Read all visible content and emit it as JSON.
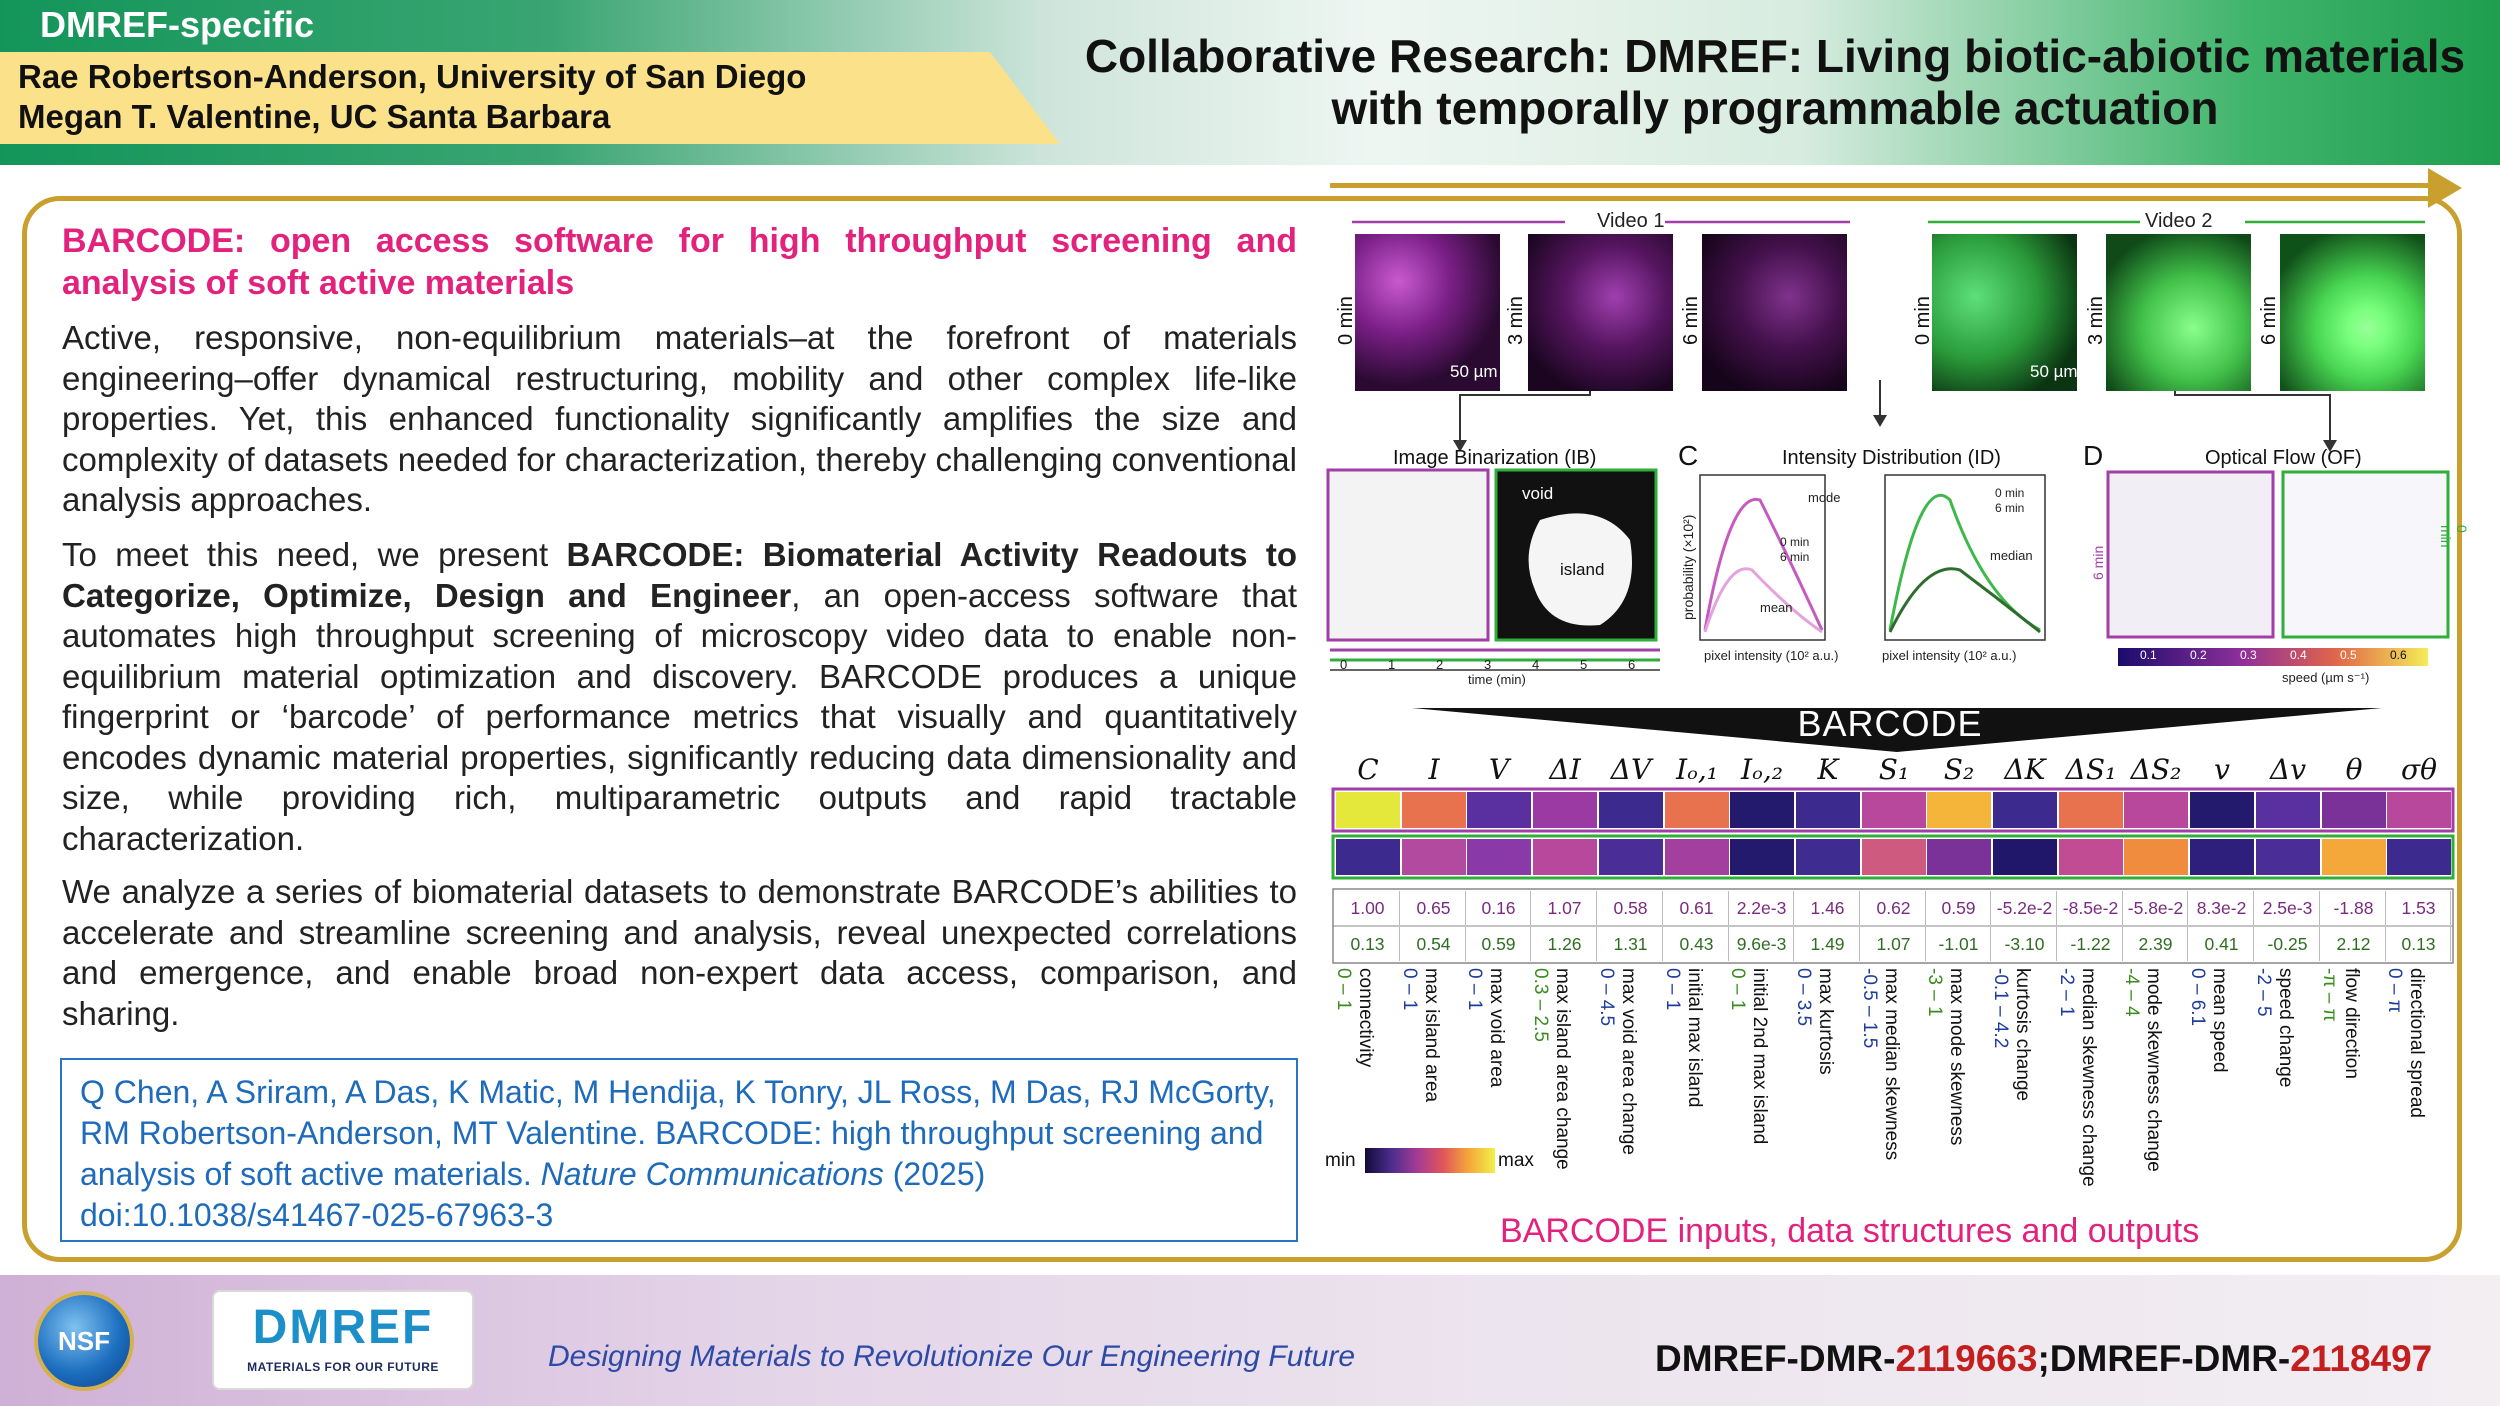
{
  "header": {
    "tag": "DMREF-specific",
    "author1": "Rae Robertson-Anderson, University of San Diego",
    "author2": "Megan T. Valentine, UC Santa Barbara",
    "title": "Collaborative Research: DMREF: Living biotic-abiotic materials with temporally programmable actuation"
  },
  "left": {
    "subtitle": "BARCODE: open access software for high throughput screening and analysis of soft active materials",
    "p1": "Active, responsive, non-equilibrium materials–at the forefront of materials engineering–offer dynamical restructuring, mobility and other complex life-like properties. Yet, this enhanced functionality significantly amplifies the size and complexity of datasets needed for characterization, thereby challenging conventional analysis approaches.",
    "p2_a": "To meet this need, we present ",
    "p2_bold": "BARCODE: Biomaterial Activity Readouts to Categorize, Optimize, Design and Engineer",
    "p2_b": ", an open-access software that automates high throughput screening of microscopy video data to enable non-equilibrium material optimization and discovery. BARCODE produces a unique fingerprint or ‘barcode’ of performance metrics that visually and quantitatively encodes dynamic material properties, significantly reducing data dimensionality and size, while providing rich, multiparametric outputs and rapid tractable characterization.",
    "p3": "We analyze a series of biomaterial datasets to demonstrate BARCODE’s abilities to accelerate and streamline screening and analysis, reveal unexpected correlations and emergence, and enable broad non-expert data access, comparison, and sharing.",
    "citation_a": "Q Chen, A Sriram, A Das, K Matic, M Hendija, K Tonry, JL Ross, M Das, RJ McGorty, RM Robertson-Anderson, MT Valentine. BARCODE: high throughput screening and analysis of soft active materials. ",
    "citation_journal": "Nature Communications",
    "citation_b": " (2025) doi:10.1038/s41467-025-67963-3"
  },
  "figure": {
    "video1": "Video 1",
    "video2": "Video 2",
    "times": [
      "0 min",
      "3 min",
      "6 min"
    ],
    "scale": "50 µm",
    "scale2": "50 µm",
    "ib_title": "Image Binarization (IB)",
    "id_title": "Intensity Distribution (ID)",
    "of_title": "Optical Flow (OF)",
    "letter_c": "C",
    "letter_d": "D",
    "void": "void",
    "island": "island",
    "time_axis": "time (min)",
    "time_ticks": [
      "0",
      "1",
      "2",
      "3",
      "4",
      "5",
      "6"
    ],
    "prob_label": "probability (×10²)",
    "pix_label": "pixel intensity (10² a.u.)",
    "mode": "mode",
    "mean": "mean",
    "median": "median",
    "leg0": "0 min",
    "leg6": "6 min",
    "of_6": "6 min",
    "of_0": "0 min",
    "speed_label": "speed (µm s⁻¹)",
    "speed_ticks": [
      "0.1",
      "0.2",
      "0.3",
      "0.4",
      "0.5",
      "0.6"
    ],
    "barcode": "BARCODE",
    "scale_min": "min",
    "scale_max": "max",
    "caption": "BARCODE inputs, data structures and outputs"
  },
  "barcode_metrics": [
    {
      "sym": "C",
      "row1": "1.00",
      "row2": "0.13",
      "label": "connectivity",
      "range": "0 – 1",
      "c1": "#e4e83a",
      "c2": "#3c2a8f"
    },
    {
      "sym": "I",
      "row1": "0.65",
      "row2": "0.54",
      "label": "max island area",
      "range": "0 – 1",
      "c1": "#e8724e",
      "c2": "#b24aa0"
    },
    {
      "sym": "V",
      "row1": "0.16",
      "row2": "0.59",
      "label": "max void area",
      "range": "0 – 1",
      "c1": "#5a2fa0",
      "c2": "#8a3aa8"
    },
    {
      "sym": "ΔI",
      "row1": "1.07",
      "row2": "1.26",
      "label": "max island area change",
      "range": "0.3 – 2.5",
      "c1": "#9c3aa4",
      "c2": "#b8489c"
    },
    {
      "sym": "ΔV",
      "row1": "0.58",
      "row2": "1.31",
      "label": "max void area change",
      "range": "0 – 4.5",
      "c1": "#3c2a8f",
      "c2": "#4a2d96"
    },
    {
      "sym": "Iₒ,₁",
      "row1": "0.61",
      "row2": "0.43",
      "label": "initial max island",
      "range": "0 – 1",
      "c1": "#e8724e",
      "c2": "#a23f9f"
    },
    {
      "sym": "Iₒ,₂",
      "row1": "2.2e-3",
      "row2": "9.6e-3",
      "label": "initial 2nd max island",
      "range": "0 – 1",
      "c1": "#231a6e",
      "c2": "#231a6e"
    },
    {
      "sym": "K",
      "row1": "1.46",
      "row2": "1.49",
      "label": "max kurtosis",
      "range": "0 – 3.5",
      "c1": "#3c2a8f",
      "c2": "#3e2c90"
    },
    {
      "sym": "S₁",
      "row1": "0.62",
      "row2": "1.07",
      "label": "max median skewness",
      "range": "-0.5 – 1.5",
      "c1": "#b8489c",
      "c2": "#ce5a80"
    },
    {
      "sym": "S₂",
      "row1": "0.59",
      "row2": "-1.01",
      "label": "max mode skewness",
      "range": "-3 – 1",
      "c1": "#f5b53a",
      "c2": "#7a3298"
    },
    {
      "sym": "ΔK",
      "row1": "-5.2e-2",
      "row2": "-3.10",
      "label": "kurtosis change",
      "range": "-0.1 – 4.2",
      "c1": "#3c2a8f",
      "c2": "#20166a"
    },
    {
      "sym": "ΔS₁",
      "row1": "-8.5e-2",
      "row2": "-1.22",
      "label": "median skewness change",
      "range": "-2 – 1",
      "c1": "#e8724e",
      "c2": "#c24c93"
    },
    {
      "sym": "ΔS₂",
      "row1": "-5.8e-2",
      "row2": "2.39",
      "label": "mode skewness change",
      "range": "-4 – 4",
      "c1": "#b8489c",
      "c2": "#f08c3e"
    },
    {
      "sym": "v",
      "row1": "8.3e-2",
      "row2": "0.41",
      "label": "mean speed",
      "range": "0 – 6.1",
      "c1": "#231a6e",
      "c2": "#2e1f7c"
    },
    {
      "sym": "Δv",
      "row1": "2.5e-3",
      "row2": "-0.25",
      "label": "speed change",
      "range": "-2 – 5",
      "c1": "#5a2fa0",
      "c2": "#4a2d96"
    },
    {
      "sym": "θ",
      "row1": "-1.88",
      "row2": "2.12",
      "label": "flow direction",
      "range": "-π – π",
      "c1": "#7a3298",
      "c2": "#f5a83a"
    },
    {
      "sym": "σθ",
      "row1": "1.53",
      "row2": "0.13",
      "label": "directional spread",
      "range": "0 – π",
      "c1": "#b8489c",
      "c2": "#3c2a8f"
    }
  ],
  "footer": {
    "nsf": "NSF",
    "dmref": "DMREF",
    "dmref_sub": "MATERIALS FOR OUR FUTURE",
    "motto": "Designing Materials to Revolutionize Our Engineering Future",
    "award_a": "DMREF-DMR-",
    "award_a_num": "2119663",
    "award_sep": ";DMREF-DMR-",
    "award_b_num": "2118497"
  }
}
